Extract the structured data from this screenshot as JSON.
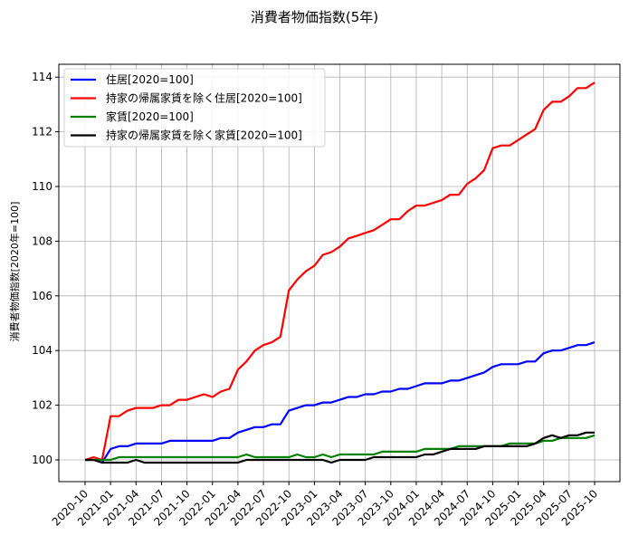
{
  "chart_data": {
    "type": "line",
    "title": "消費者物価指数(5年)",
    "xlabel": "",
    "ylabel": "消費者物価指数[2020年=100]",
    "ylim": [
      99.2,
      114.4
    ],
    "yticks": [
      100,
      102,
      104,
      106,
      108,
      110,
      112,
      114
    ],
    "xtick_labels": [
      "2020-10",
      "2021-01",
      "2021-04",
      "2021-07",
      "2021-10",
      "2022-01",
      "2022-04",
      "2022-07",
      "2022-10",
      "2023-01",
      "2023-04",
      "2023-07",
      "2023-10",
      "2024-01",
      "2024-04",
      "2024-07",
      "2024-10",
      "2025-01",
      "2025-04",
      "2025-07",
      "2025-10"
    ],
    "grid": true,
    "legend_position": "upper left",
    "x_start": "2020-10",
    "frequency": "monthly",
    "series": [
      {
        "name": "住居[2020=100]",
        "color": "#0000ff",
        "values": [
          100.0,
          100.0,
          99.9,
          100.4,
          100.5,
          100.5,
          100.6,
          100.6,
          100.6,
          100.6,
          100.7,
          100.7,
          100.7,
          100.7,
          100.7,
          100.7,
          100.8,
          100.8,
          101.0,
          101.1,
          101.2,
          101.2,
          101.3,
          101.3,
          101.8,
          101.9,
          102.0,
          102.0,
          102.1,
          102.1,
          102.2,
          102.3,
          102.3,
          102.4,
          102.4,
          102.5,
          102.5,
          102.6,
          102.6,
          102.7,
          102.8,
          102.8,
          102.8,
          102.9,
          102.9,
          103.0,
          103.1,
          103.2,
          103.4,
          103.5,
          103.5,
          103.5,
          103.6,
          103.6,
          103.9,
          104.0,
          104.0,
          104.1,
          104.2,
          104.2,
          104.3
        ]
      },
      {
        "name": "持家の帰属家賃を除く住居[2020=100]",
        "color": "#ff0000",
        "values": [
          100.0,
          100.1,
          100.0,
          101.6,
          101.6,
          101.8,
          101.9,
          101.9,
          101.9,
          102.0,
          102.0,
          102.2,
          102.2,
          102.3,
          102.4,
          102.3,
          102.5,
          102.6,
          103.3,
          103.6,
          104.0,
          104.2,
          104.3,
          104.5,
          106.2,
          106.6,
          106.9,
          107.1,
          107.5,
          107.6,
          107.8,
          108.1,
          108.2,
          108.3,
          108.4,
          108.6,
          108.8,
          108.8,
          109.1,
          109.3,
          109.3,
          109.4,
          109.5,
          109.7,
          109.7,
          110.1,
          110.3,
          110.6,
          111.4,
          111.5,
          111.5,
          111.7,
          111.9,
          112.1,
          112.8,
          113.1,
          113.1,
          113.3,
          113.6,
          113.6,
          113.8
        ]
      },
      {
        "name": "家賃[2020=100]",
        "color": "#008000",
        "values": [
          100.0,
          100.0,
          100.0,
          100.0,
          100.1,
          100.1,
          100.1,
          100.1,
          100.1,
          100.1,
          100.1,
          100.1,
          100.1,
          100.1,
          100.1,
          100.1,
          100.1,
          100.1,
          100.1,
          100.2,
          100.1,
          100.1,
          100.1,
          100.1,
          100.1,
          100.2,
          100.1,
          100.1,
          100.2,
          100.1,
          100.2,
          100.2,
          100.2,
          100.2,
          100.2,
          100.3,
          100.3,
          100.3,
          100.3,
          100.3,
          100.4,
          100.4,
          100.4,
          100.4,
          100.5,
          100.5,
          100.5,
          100.5,
          100.5,
          100.5,
          100.6,
          100.6,
          100.6,
          100.6,
          100.7,
          100.7,
          100.8,
          100.8,
          100.8,
          100.8,
          100.9
        ]
      },
      {
        "name": "持家の帰属家賃を除く家賃[2020=100]",
        "color": "#000000",
        "values": [
          100.0,
          100.0,
          99.9,
          99.9,
          99.9,
          99.9,
          100.0,
          99.9,
          99.9,
          99.9,
          99.9,
          99.9,
          99.9,
          99.9,
          99.9,
          99.9,
          99.9,
          99.9,
          99.9,
          100.0,
          100.0,
          100.0,
          100.0,
          100.0,
          100.0,
          100.0,
          100.0,
          100.0,
          100.0,
          99.9,
          100.0,
          100.0,
          100.0,
          100.0,
          100.1,
          100.1,
          100.1,
          100.1,
          100.1,
          100.1,
          100.2,
          100.2,
          100.3,
          100.4,
          100.4,
          100.4,
          100.4,
          100.5,
          100.5,
          100.5,
          100.5,
          100.5,
          100.5,
          100.6,
          100.8,
          100.9,
          100.8,
          100.9,
          100.9,
          101.0,
          101.0
        ]
      }
    ]
  }
}
